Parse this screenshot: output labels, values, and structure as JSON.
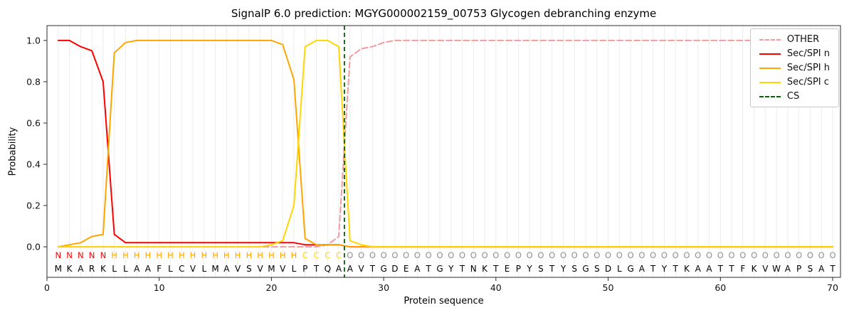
{
  "chart_data": {
    "type": "line",
    "title": "SignalP 6.0 prediction: MGYG000002159_00753 Glycogen debranching enzyme",
    "xlabel": "Protein sequence",
    "ylabel": "Probability",
    "xlim": [
      0,
      70.7
    ],
    "ylim": [
      -0.148,
      1.072
    ],
    "xticks": [
      0,
      10,
      20,
      30,
      40,
      50,
      60,
      70
    ],
    "yticks": [
      0,
      0.2,
      0.4,
      0.6,
      0.8,
      1.0
    ],
    "grid": "vertical-per-residue",
    "legend_position": "upper right",
    "x_start": 1,
    "series": [
      {
        "name": "OTHER",
        "color": "#f49ba0",
        "style": "dashed",
        "values": [
          0,
          0,
          0,
          0,
          0,
          0,
          0,
          0,
          0,
          0,
          0,
          0,
          0,
          0,
          0,
          0,
          0,
          0,
          0,
          0,
          0,
          0,
          0,
          0,
          0.01,
          0.05,
          0.92,
          0.96,
          0.97,
          0.99,
          1,
          1,
          1,
          1,
          1,
          1,
          1,
          1,
          1,
          1,
          1,
          1,
          1,
          1,
          1,
          1,
          1,
          1,
          1,
          1,
          1,
          1,
          1,
          1,
          1,
          1,
          1,
          1,
          1,
          1,
          1,
          1,
          1,
          1,
          1,
          1,
          1,
          1,
          1,
          1
        ]
      },
      {
        "name": "Sec/SPI n",
        "color": "#ff0000",
        "style": "solid",
        "values": [
          1,
          1,
          0.97,
          0.95,
          0.8,
          0.06,
          0.02,
          0.02,
          0.02,
          0.02,
          0.02,
          0.02,
          0.02,
          0.02,
          0.02,
          0.02,
          0.02,
          0.02,
          0.02,
          0.02,
          0.02,
          0.02,
          0.01,
          0.01,
          0.01,
          0.01,
          0,
          0,
          0,
          0,
          0,
          0,
          0,
          0,
          0,
          0,
          0,
          0,
          0,
          0,
          0,
          0,
          0,
          0,
          0,
          0,
          0,
          0,
          0,
          0,
          0,
          0,
          0,
          0,
          0,
          0,
          0,
          0,
          0,
          0,
          0,
          0,
          0,
          0,
          0,
          0,
          0,
          0,
          0,
          0
        ]
      },
      {
        "name": "Sec/SPI h",
        "color": "#ffa500",
        "style": "solid",
        "values": [
          0,
          0.01,
          0.02,
          0.05,
          0.06,
          0.94,
          0.99,
          1,
          1,
          1,
          1,
          1,
          1,
          1,
          1,
          1,
          1,
          1,
          1,
          1,
          0.98,
          0.81,
          0.04,
          0.01,
          0.01,
          0.01,
          0,
          0,
          0,
          0,
          0,
          0,
          0,
          0,
          0,
          0,
          0,
          0,
          0,
          0,
          0,
          0,
          0,
          0,
          0,
          0,
          0,
          0,
          0,
          0,
          0,
          0,
          0,
          0,
          0,
          0,
          0,
          0,
          0,
          0,
          0,
          0,
          0,
          0,
          0,
          0,
          0,
          0,
          0,
          0
        ]
      },
      {
        "name": "Sec/SPI c",
        "color": "#ffd700",
        "style": "solid",
        "values": [
          0,
          0,
          0,
          0,
          0,
          0,
          0,
          0,
          0,
          0,
          0,
          0,
          0,
          0,
          0,
          0,
          0,
          0,
          0,
          0.01,
          0.03,
          0.2,
          0.97,
          1,
          1,
          0.97,
          0.03,
          0.01,
          0,
          0,
          0,
          0,
          0,
          0,
          0,
          0,
          0,
          0,
          0,
          0,
          0,
          0,
          0,
          0,
          0,
          0,
          0,
          0,
          0,
          0,
          0,
          0,
          0,
          0,
          0,
          0,
          0,
          0,
          0,
          0,
          0,
          0,
          0,
          0,
          0,
          0,
          0,
          0,
          0,
          0
        ]
      }
    ],
    "cs_line": {
      "name": "CS",
      "position": 26.5,
      "color": "#006400",
      "style": "dashed"
    },
    "sequence": "MKARKLLAAFLCVLMAVSVMVLPTQAAVTGDEATGYTNKTEPYSTYSGSDLGATYTKAATTFKVWAPSAT",
    "region_labels": "NNNNNHHHHHHHHHHHHHHHHHCCCCOOOOOOOOOOOOOOOOOOOOOOOOOOOOOOOOOOOOOOOOOOOO",
    "region_colors": {
      "N": "#ff0000",
      "H": "#ffa500",
      "C": "#ffd700",
      "O": "#8f8f8f"
    },
    "legend": {
      "items": [
        {
          "label": "OTHER",
          "color": "#f49ba0",
          "dash": true
        },
        {
          "label": "Sec/SPI n",
          "color": "#ff0000",
          "dash": false
        },
        {
          "label": "Sec/SPI h",
          "color": "#ffa500",
          "dash": false
        },
        {
          "label": "Sec/SPI c",
          "color": "#ffd700",
          "dash": false
        },
        {
          "label": "CS",
          "color": "#006400",
          "dash": true
        }
      ]
    }
  }
}
